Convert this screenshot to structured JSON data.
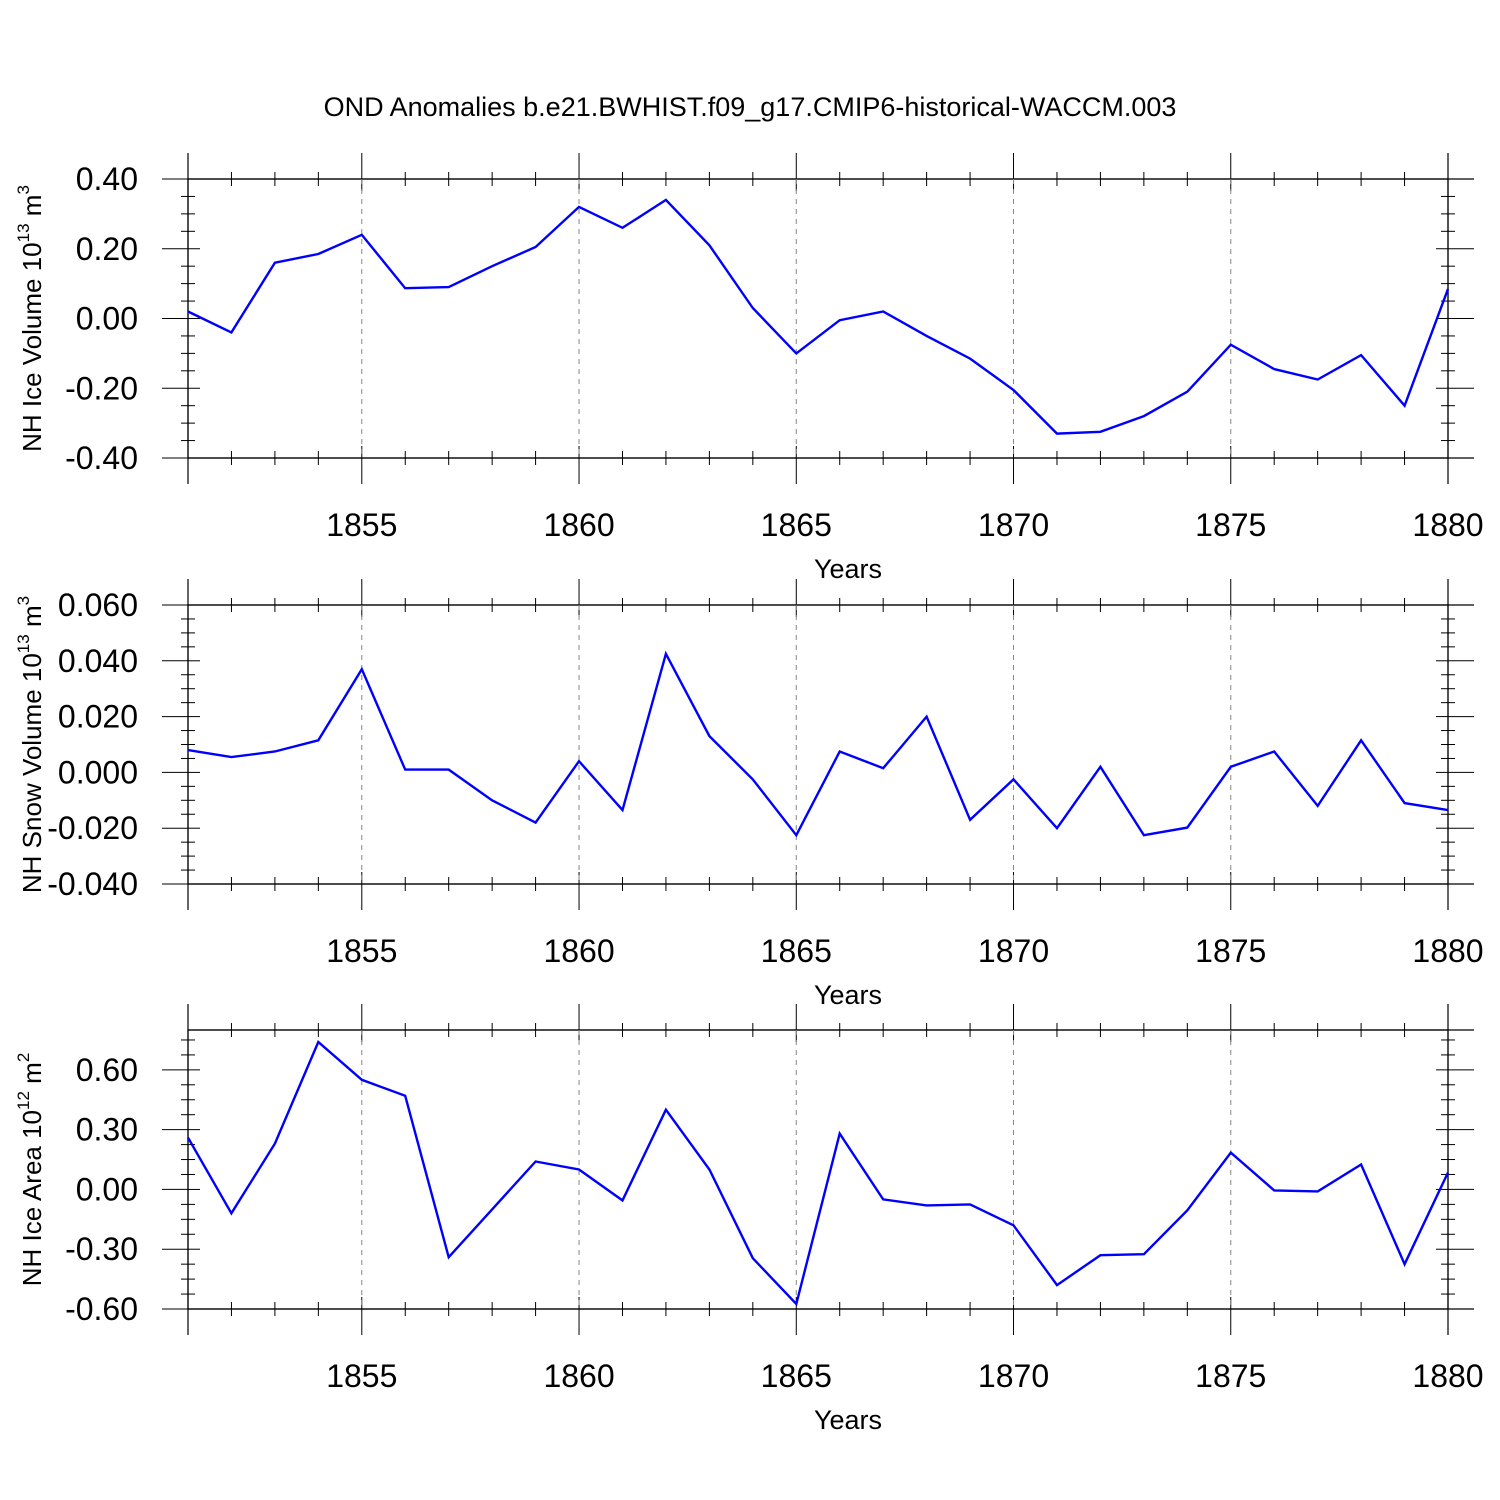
{
  "title": "OND Anomalies b.e21.BWHIST.f09_g17.CMIP6-historical-WACCM.003",
  "chart_data": [
    {
      "type": "line",
      "ylabel_prefix": "NH Ice Volume 10",
      "ylabel_exp": "13",
      "ylabel_unit": " m",
      "ylabel_unit_exp": "3",
      "xlabel": "Years",
      "ylim": [
        -0.4,
        0.4
      ],
      "yticks": [
        -0.4,
        -0.2,
        0.0,
        0.2,
        0.4
      ],
      "ytick_labels": [
        "-0.40",
        "-0.20",
        "0.00",
        "0.20",
        "0.40"
      ],
      "xlim": [
        1851,
        1880
      ],
      "xticks": [
        1855,
        1860,
        1865,
        1870,
        1875,
        1880
      ],
      "xtick_labels": [
        "1855",
        "1860",
        "1865",
        "1870",
        "1875",
        "1880"
      ],
      "grid": "dashed vertical at major x ticks",
      "x": [
        1851,
        1852,
        1853,
        1854,
        1855,
        1856,
        1857,
        1858,
        1859,
        1860,
        1861,
        1862,
        1863,
        1864,
        1865,
        1866,
        1867,
        1868,
        1869,
        1870,
        1871,
        1872,
        1873,
        1874,
        1875,
        1876,
        1877,
        1878,
        1879,
        1880
      ],
      "series": [
        {
          "color": "#0000ff",
          "values": [
            0.02,
            -0.04,
            0.16,
            0.185,
            0.24,
            0.087,
            0.09,
            0.15,
            0.205,
            0.32,
            0.26,
            0.34,
            0.21,
            0.03,
            -0.1,
            -0.005,
            0.02,
            -0.05,
            -0.115,
            -0.205,
            -0.33,
            -0.325,
            -0.28,
            -0.21,
            -0.075,
            -0.145,
            -0.175,
            -0.105,
            -0.25,
            0.085
          ]
        }
      ]
    },
    {
      "type": "line",
      "ylabel_prefix": "NH Snow Volume 10",
      "ylabel_exp": "13",
      "ylabel_unit": " m",
      "ylabel_unit_exp": "3",
      "xlabel": "Years",
      "ylim": [
        -0.04,
        0.06
      ],
      "yticks": [
        -0.04,
        -0.02,
        0.0,
        0.02,
        0.04,
        0.06
      ],
      "ytick_labels": [
        "-0.040",
        "-0.020",
        "0.000",
        "0.020",
        "0.040",
        "0.060"
      ],
      "xlim": [
        1851,
        1880
      ],
      "xticks": [
        1855,
        1860,
        1865,
        1870,
        1875,
        1880
      ],
      "xtick_labels": [
        "1855",
        "1860",
        "1865",
        "1870",
        "1875",
        "1880"
      ],
      "grid": "dashed vertical at major x ticks",
      "x": [
        1851,
        1852,
        1853,
        1854,
        1855,
        1856,
        1857,
        1858,
        1859,
        1860,
        1861,
        1862,
        1863,
        1864,
        1865,
        1866,
        1867,
        1868,
        1869,
        1870,
        1871,
        1872,
        1873,
        1874,
        1875,
        1876,
        1877,
        1878,
        1879,
        1880
      ],
      "series": [
        {
          "color": "#0000ff",
          "values": [
            0.008,
            0.0055,
            0.0075,
            0.0115,
            0.037,
            0.001,
            0.001,
            -0.01,
            -0.018,
            0.004,
            -0.0135,
            0.0425,
            0.013,
            -0.0025,
            -0.0225,
            0.0075,
            0.0015,
            0.02,
            -0.017,
            -0.0025,
            -0.02,
            0.002,
            -0.0225,
            -0.0198,
            0.002,
            0.0075,
            -0.012,
            0.0115,
            -0.011,
            -0.0135
          ]
        }
      ]
    },
    {
      "type": "line",
      "ylabel_prefix": "NH Ice Area 10",
      "ylabel_exp": "12",
      "ylabel_unit": " m",
      "ylabel_unit_exp": "2",
      "xlabel": "Years",
      "ylim": [
        -0.6,
        0.8
      ],
      "yticks": [
        -0.6,
        -0.3,
        0.0,
        0.3,
        0.6
      ],
      "ytick_labels": [
        "-0.60",
        "-0.30",
        "0.00",
        "0.30",
        "0.60"
      ],
      "xlim": [
        1851,
        1880
      ],
      "xticks": [
        1855,
        1860,
        1865,
        1870,
        1875,
        1880
      ],
      "xtick_labels": [
        "1855",
        "1860",
        "1865",
        "1870",
        "1875",
        "1880"
      ],
      "grid": "dashed vertical at major x ticks",
      "x": [
        1851,
        1852,
        1853,
        1854,
        1855,
        1856,
        1857,
        1858,
        1859,
        1860,
        1861,
        1862,
        1863,
        1864,
        1865,
        1866,
        1867,
        1868,
        1869,
        1870,
        1871,
        1872,
        1873,
        1874,
        1875,
        1876,
        1877,
        1878,
        1879,
        1880
      ],
      "series": [
        {
          "color": "#0000ff",
          "values": [
            0.26,
            -0.12,
            0.23,
            0.74,
            0.55,
            0.47,
            -0.34,
            -0.1,
            0.14,
            0.1,
            -0.055,
            0.4,
            0.1,
            -0.345,
            -0.575,
            0.28,
            -0.05,
            -0.08,
            -0.075,
            -0.18,
            -0.48,
            -0.33,
            -0.325,
            -0.105,
            0.185,
            -0.005,
            -0.01,
            0.125,
            -0.375,
            0.085
          ]
        }
      ]
    }
  ]
}
